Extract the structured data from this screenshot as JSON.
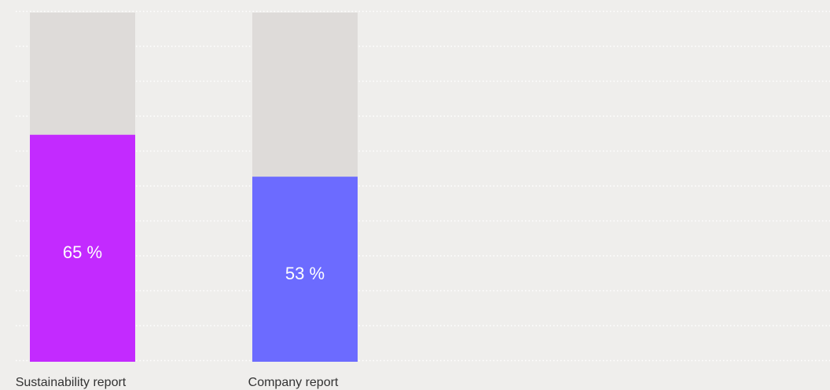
{
  "chart_data": {
    "type": "bar",
    "categories": [
      "Sustainability report",
      "Company report"
    ],
    "series": [
      {
        "colors": [
          "#c32aff",
          "#6c6bff"
        ],
        "values": [
          65,
          53
        ],
        "value_labels": [
          "65 %",
          "53 %"
        ]
      }
    ],
    "ylim": [
      0,
      100
    ],
    "yticks": [
      0,
      10,
      20,
      30,
      40,
      50,
      60,
      70,
      80,
      90,
      100
    ],
    "grid": true,
    "track_color": "#dedbd9"
  }
}
